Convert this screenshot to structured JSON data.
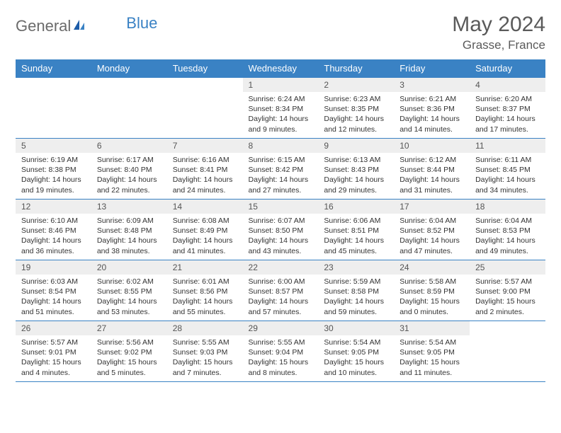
{
  "logo": {
    "text1": "General",
    "text2": "Blue"
  },
  "title": "May 2024",
  "location": "Grasse, France",
  "colors": {
    "header_bg": "#3a82c4",
    "header_text": "#ffffff",
    "daynum_bg": "#eeeeee",
    "border": "#3a82c4",
    "body_text": "#333333",
    "title_text": "#5a5a5a"
  },
  "weekdays": [
    "Sunday",
    "Monday",
    "Tuesday",
    "Wednesday",
    "Thursday",
    "Friday",
    "Saturday"
  ],
  "weeks": [
    [
      {
        "empty": true
      },
      {
        "empty": true
      },
      {
        "empty": true
      },
      {
        "day": "1",
        "sunrise": "Sunrise: 6:24 AM",
        "sunset": "Sunset: 8:34 PM",
        "daylight1": "Daylight: 14 hours",
        "daylight2": "and 9 minutes."
      },
      {
        "day": "2",
        "sunrise": "Sunrise: 6:23 AM",
        "sunset": "Sunset: 8:35 PM",
        "daylight1": "Daylight: 14 hours",
        "daylight2": "and 12 minutes."
      },
      {
        "day": "3",
        "sunrise": "Sunrise: 6:21 AM",
        "sunset": "Sunset: 8:36 PM",
        "daylight1": "Daylight: 14 hours",
        "daylight2": "and 14 minutes."
      },
      {
        "day": "4",
        "sunrise": "Sunrise: 6:20 AM",
        "sunset": "Sunset: 8:37 PM",
        "daylight1": "Daylight: 14 hours",
        "daylight2": "and 17 minutes."
      }
    ],
    [
      {
        "day": "5",
        "sunrise": "Sunrise: 6:19 AM",
        "sunset": "Sunset: 8:38 PM",
        "daylight1": "Daylight: 14 hours",
        "daylight2": "and 19 minutes."
      },
      {
        "day": "6",
        "sunrise": "Sunrise: 6:17 AM",
        "sunset": "Sunset: 8:40 PM",
        "daylight1": "Daylight: 14 hours",
        "daylight2": "and 22 minutes."
      },
      {
        "day": "7",
        "sunrise": "Sunrise: 6:16 AM",
        "sunset": "Sunset: 8:41 PM",
        "daylight1": "Daylight: 14 hours",
        "daylight2": "and 24 minutes."
      },
      {
        "day": "8",
        "sunrise": "Sunrise: 6:15 AM",
        "sunset": "Sunset: 8:42 PM",
        "daylight1": "Daylight: 14 hours",
        "daylight2": "and 27 minutes."
      },
      {
        "day": "9",
        "sunrise": "Sunrise: 6:13 AM",
        "sunset": "Sunset: 8:43 PM",
        "daylight1": "Daylight: 14 hours",
        "daylight2": "and 29 minutes."
      },
      {
        "day": "10",
        "sunrise": "Sunrise: 6:12 AM",
        "sunset": "Sunset: 8:44 PM",
        "daylight1": "Daylight: 14 hours",
        "daylight2": "and 31 minutes."
      },
      {
        "day": "11",
        "sunrise": "Sunrise: 6:11 AM",
        "sunset": "Sunset: 8:45 PM",
        "daylight1": "Daylight: 14 hours",
        "daylight2": "and 34 minutes."
      }
    ],
    [
      {
        "day": "12",
        "sunrise": "Sunrise: 6:10 AM",
        "sunset": "Sunset: 8:46 PM",
        "daylight1": "Daylight: 14 hours",
        "daylight2": "and 36 minutes."
      },
      {
        "day": "13",
        "sunrise": "Sunrise: 6:09 AM",
        "sunset": "Sunset: 8:48 PM",
        "daylight1": "Daylight: 14 hours",
        "daylight2": "and 38 minutes."
      },
      {
        "day": "14",
        "sunrise": "Sunrise: 6:08 AM",
        "sunset": "Sunset: 8:49 PM",
        "daylight1": "Daylight: 14 hours",
        "daylight2": "and 41 minutes."
      },
      {
        "day": "15",
        "sunrise": "Sunrise: 6:07 AM",
        "sunset": "Sunset: 8:50 PM",
        "daylight1": "Daylight: 14 hours",
        "daylight2": "and 43 minutes."
      },
      {
        "day": "16",
        "sunrise": "Sunrise: 6:06 AM",
        "sunset": "Sunset: 8:51 PM",
        "daylight1": "Daylight: 14 hours",
        "daylight2": "and 45 minutes."
      },
      {
        "day": "17",
        "sunrise": "Sunrise: 6:04 AM",
        "sunset": "Sunset: 8:52 PM",
        "daylight1": "Daylight: 14 hours",
        "daylight2": "and 47 minutes."
      },
      {
        "day": "18",
        "sunrise": "Sunrise: 6:04 AM",
        "sunset": "Sunset: 8:53 PM",
        "daylight1": "Daylight: 14 hours",
        "daylight2": "and 49 minutes."
      }
    ],
    [
      {
        "day": "19",
        "sunrise": "Sunrise: 6:03 AM",
        "sunset": "Sunset: 8:54 PM",
        "daylight1": "Daylight: 14 hours",
        "daylight2": "and 51 minutes."
      },
      {
        "day": "20",
        "sunrise": "Sunrise: 6:02 AM",
        "sunset": "Sunset: 8:55 PM",
        "daylight1": "Daylight: 14 hours",
        "daylight2": "and 53 minutes."
      },
      {
        "day": "21",
        "sunrise": "Sunrise: 6:01 AM",
        "sunset": "Sunset: 8:56 PM",
        "daylight1": "Daylight: 14 hours",
        "daylight2": "and 55 minutes."
      },
      {
        "day": "22",
        "sunrise": "Sunrise: 6:00 AM",
        "sunset": "Sunset: 8:57 PM",
        "daylight1": "Daylight: 14 hours",
        "daylight2": "and 57 minutes."
      },
      {
        "day": "23",
        "sunrise": "Sunrise: 5:59 AM",
        "sunset": "Sunset: 8:58 PM",
        "daylight1": "Daylight: 14 hours",
        "daylight2": "and 59 minutes."
      },
      {
        "day": "24",
        "sunrise": "Sunrise: 5:58 AM",
        "sunset": "Sunset: 8:59 PM",
        "daylight1": "Daylight: 15 hours",
        "daylight2": "and 0 minutes."
      },
      {
        "day": "25",
        "sunrise": "Sunrise: 5:57 AM",
        "sunset": "Sunset: 9:00 PM",
        "daylight1": "Daylight: 15 hours",
        "daylight2": "and 2 minutes."
      }
    ],
    [
      {
        "day": "26",
        "sunrise": "Sunrise: 5:57 AM",
        "sunset": "Sunset: 9:01 PM",
        "daylight1": "Daylight: 15 hours",
        "daylight2": "and 4 minutes."
      },
      {
        "day": "27",
        "sunrise": "Sunrise: 5:56 AM",
        "sunset": "Sunset: 9:02 PM",
        "daylight1": "Daylight: 15 hours",
        "daylight2": "and 5 minutes."
      },
      {
        "day": "28",
        "sunrise": "Sunrise: 5:55 AM",
        "sunset": "Sunset: 9:03 PM",
        "daylight1": "Daylight: 15 hours",
        "daylight2": "and 7 minutes."
      },
      {
        "day": "29",
        "sunrise": "Sunrise: 5:55 AM",
        "sunset": "Sunset: 9:04 PM",
        "daylight1": "Daylight: 15 hours",
        "daylight2": "and 8 minutes."
      },
      {
        "day": "30",
        "sunrise": "Sunrise: 5:54 AM",
        "sunset": "Sunset: 9:05 PM",
        "daylight1": "Daylight: 15 hours",
        "daylight2": "and 10 minutes."
      },
      {
        "day": "31",
        "sunrise": "Sunrise: 5:54 AM",
        "sunset": "Sunset: 9:05 PM",
        "daylight1": "Daylight: 15 hours",
        "daylight2": "and 11 minutes."
      },
      {
        "empty": true
      }
    ]
  ]
}
